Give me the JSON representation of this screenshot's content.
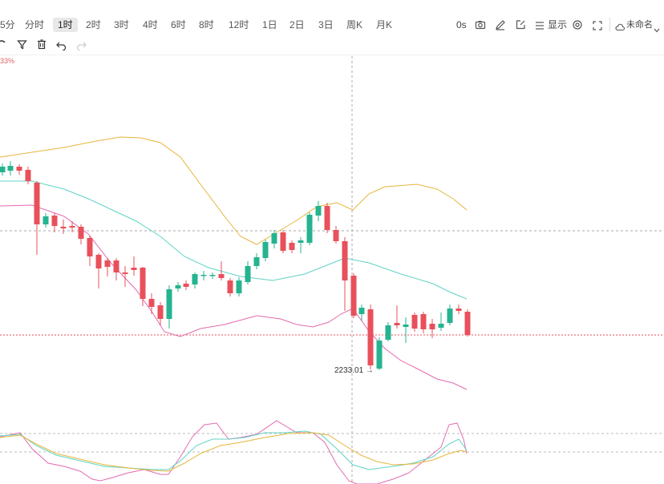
{
  "toolbar": {
    "timeframes": [
      "5分",
      "分时",
      "1时",
      "2时",
      "3时",
      "4时",
      "6时",
      "8时",
      "12时",
      "1日",
      "2日",
      "3日",
      "周K",
      "月K"
    ],
    "active_timeframe": "1时",
    "seconds": "0s",
    "display_label": "显示",
    "layout_name": "未命名"
  },
  "chart": {
    "change_percent": "33%",
    "low_label": "2233.01",
    "colors": {
      "up": "#26b38f",
      "down": "#e8505b",
      "boll_upper": "#e5b73b",
      "boll_mid": "#5fd3c5",
      "boll_lower": "#e46aaf"
    }
  }
}
